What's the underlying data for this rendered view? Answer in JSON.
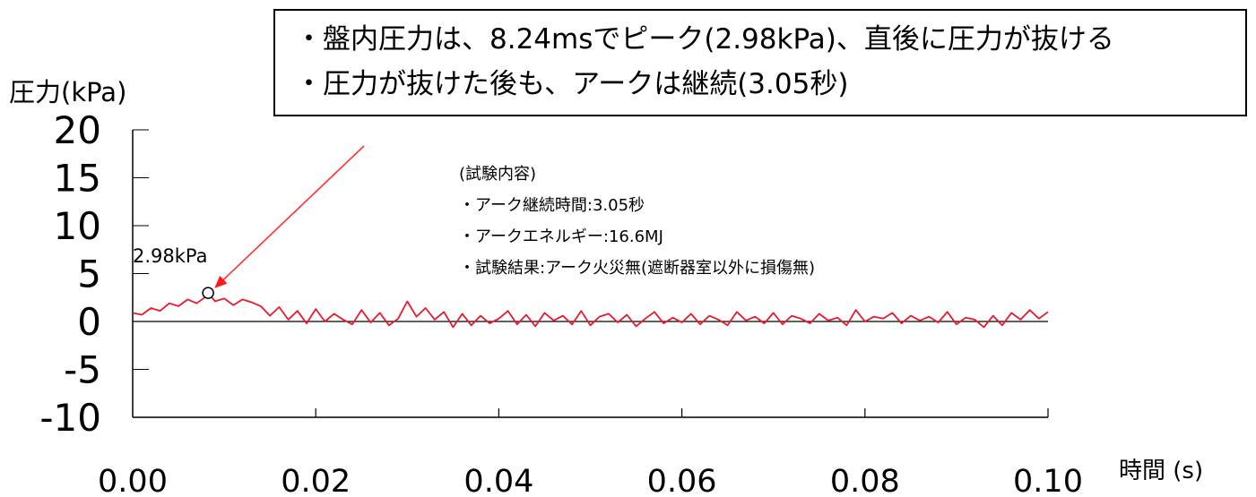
{
  "summary": {
    "lines": [
      "・盤内圧力は、8.24msでピーク(2.98kPa)、直後に圧力が抜ける",
      "・圧力が抜けた後も、アークは継続(3.05秒)"
    ]
  },
  "annotation": {
    "lines": [
      "(試験内容)",
      "・アーク継続時間:3.05秒",
      "・アークエネルギー:16.6MJ",
      "・試験結果:アーク火災無(遮断器室以外に損傷無)"
    ]
  },
  "chart_data": {
    "type": "line",
    "ylabel": "圧力(kPa)",
    "xlabel": "時間 (s)",
    "xlim": [
      0,
      0.1
    ],
    "ylim": [
      -10,
      20
    ],
    "yticks": [
      "20",
      "15",
      "10",
      "5",
      "0",
      "-5",
      "-10"
    ],
    "xticks": [
      "0.00",
      "0.02",
      "0.04",
      "0.06",
      "0.08",
      "0.10"
    ],
    "grid": false,
    "line_color": "#e8192c",
    "peak": {
      "x": 0.00824,
      "y": 2.98,
      "label": "2.98kPa"
    },
    "series": [
      {
        "x": [
          0.0,
          0.001,
          0.002,
          0.003,
          0.004,
          0.005,
          0.006,
          0.007,
          0.008,
          0.00824,
          0.009,
          0.01,
          0.011,
          0.012,
          0.013,
          0.014,
          0.015,
          0.016,
          0.017,
          0.018,
          0.019,
          0.02,
          0.021,
          0.022,
          0.023,
          0.024,
          0.025,
          0.026,
          0.027,
          0.028,
          0.029,
          0.03,
          0.031,
          0.032,
          0.033,
          0.034,
          0.035,
          0.036,
          0.037,
          0.038,
          0.039,
          0.04,
          0.041,
          0.042,
          0.043,
          0.044,
          0.045,
          0.046,
          0.047,
          0.048,
          0.049,
          0.05,
          0.051,
          0.052,
          0.053,
          0.054,
          0.055,
          0.056,
          0.057,
          0.058,
          0.059,
          0.06,
          0.061,
          0.062,
          0.063,
          0.064,
          0.065,
          0.066,
          0.067,
          0.068,
          0.069,
          0.07,
          0.071,
          0.072,
          0.073,
          0.074,
          0.075,
          0.076,
          0.077,
          0.078,
          0.079,
          0.08,
          0.081,
          0.082,
          0.083,
          0.084,
          0.085,
          0.086,
          0.087,
          0.088,
          0.089,
          0.09,
          0.091,
          0.092,
          0.093,
          0.094,
          0.095,
          0.096,
          0.097,
          0.098,
          0.099,
          0.1
        ],
        "y": [
          0.9,
          0.7,
          1.4,
          1.1,
          1.9,
          1.6,
          2.3,
          1.9,
          2.6,
          2.98,
          2.1,
          2.4,
          1.7,
          2.3,
          2.0,
          1.6,
          0.6,
          1.5,
          0.2,
          1.1,
          -0.2,
          1.3,
          0.0,
          0.8,
          0.2,
          -0.3,
          1.2,
          -0.1,
          0.9,
          -0.4,
          0.3,
          2.1,
          0.5,
          1.4,
          0.2,
          1.0,
          -0.6,
          0.8,
          -0.4,
          0.6,
          -0.2,
          0.3,
          1.1,
          -0.3,
          0.7,
          -0.5,
          0.9,
          0.1,
          0.6,
          -0.3,
          1.1,
          -0.4,
          0.5,
          0.8,
          -0.1,
          0.7,
          -0.5,
          0.3,
          1.0,
          -0.2,
          0.4,
          -0.1,
          0.8,
          -0.3,
          0.6,
          0.2,
          -0.4,
          1.0,
          0.1,
          0.5,
          -0.2,
          0.9,
          -0.3,
          0.6,
          0.3,
          -0.2,
          0.8,
          0.1,
          0.4,
          -0.4,
          1.2,
          0.0,
          0.5,
          0.3,
          0.9,
          -0.2,
          0.6,
          0.1,
          0.5,
          -0.1,
          1.0,
          -0.3,
          0.4,
          0.2,
          -0.6,
          0.6,
          -0.4,
          0.9,
          0.2,
          1.2,
          0.3,
          1.0
        ]
      }
    ]
  }
}
